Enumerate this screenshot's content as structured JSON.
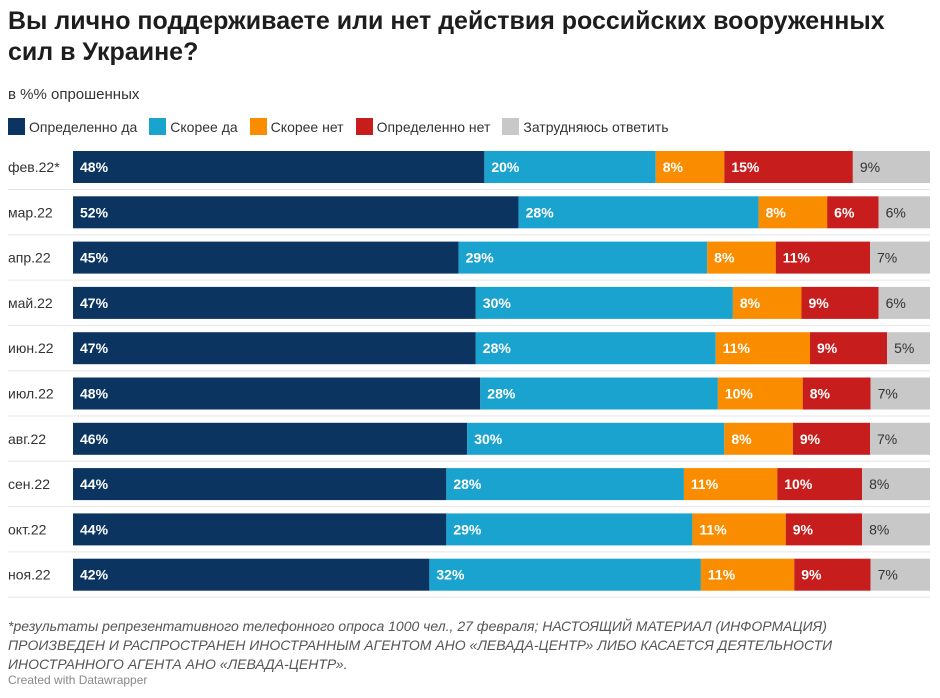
{
  "chart_data": {
    "type": "bar",
    "orientation": "horizontal",
    "stacked": true,
    "title": "Вы лично поддерживаете или нет действия российских вооруженных сил в Украине?",
    "subtitle": "в %% опрошенных",
    "legend_position": "top",
    "categories": [
      "фев.22*",
      "мар.22",
      "апр.22",
      "май.22",
      "июн.22",
      "июл.22",
      "авг.22",
      "сен.22",
      "окт.22",
      "ноя.22"
    ],
    "series": [
      {
        "name": "Определенно да",
        "color": "#0b3461",
        "label_color": "#ffffff",
        "values": [
          48,
          52,
          45,
          47,
          47,
          48,
          46,
          44,
          44,
          42
        ]
      },
      {
        "name": "Скорее да",
        "color": "#1ba3cf",
        "label_color": "#ffffff",
        "values": [
          20,
          28,
          29,
          30,
          28,
          28,
          30,
          28,
          29,
          32
        ]
      },
      {
        "name": "Скорее нет",
        "color": "#fa8c00",
        "label_color": "#ffffff",
        "values": [
          8,
          8,
          8,
          8,
          11,
          10,
          8,
          11,
          11,
          11
        ]
      },
      {
        "name": "Определенно нет",
        "color": "#c71e1d",
        "label_color": "#ffffff",
        "values": [
          15,
          6,
          11,
          9,
          9,
          8,
          9,
          10,
          9,
          9
        ]
      },
      {
        "name": "Затрудняюсь ответить",
        "color": "#c8c8c8",
        "label_color": "#333333",
        "values": [
          9,
          6,
          7,
          6,
          5,
          7,
          7,
          8,
          8,
          7
        ]
      }
    ],
    "value_suffix": "%"
  },
  "footnote": "*результаты репрезентативного телефонного опроса 1000 чел., 27 февраля; НАСТОЯЩИЙ МАТЕРИАЛ (ИНФОРМАЦИЯ) ПРОИЗВЕДЕН И РАСПРОСТРАНЕН ИНОСТРАННЫМ АГЕНТОМ АНО «ЛЕВАДА-ЦЕНТР» ЛИБО КАСАЕТСЯ ДЕЯТЕЛЬНОСТИ ИНОСТРАННОГО АГЕНТА АНО «ЛЕВАДА-ЦЕНТР».",
  "credit": "Created with Datawrapper"
}
